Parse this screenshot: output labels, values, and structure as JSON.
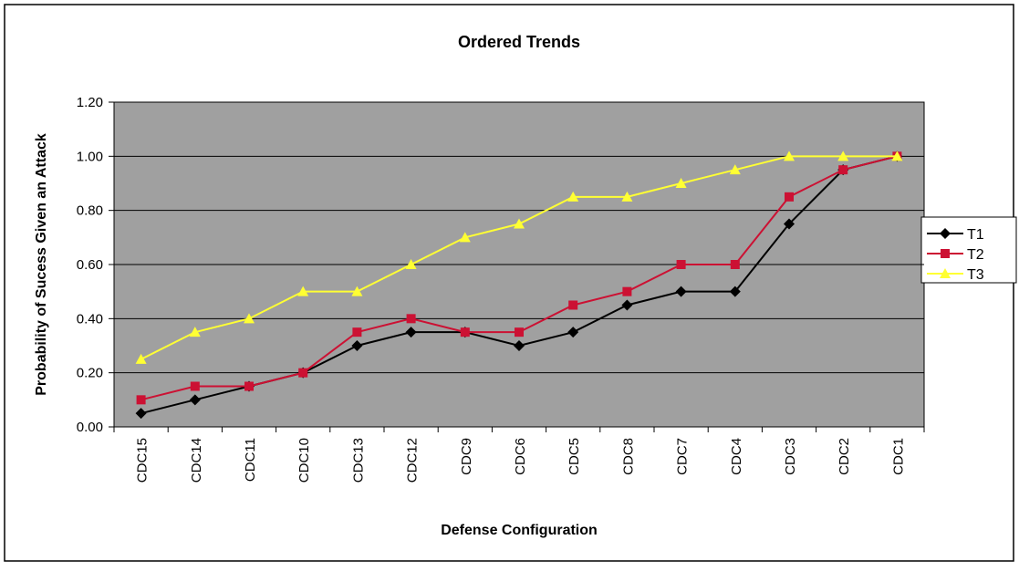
{
  "chart_data": {
    "type": "line",
    "title": "Ordered Trends",
    "x_label": "Defense Configuration",
    "y_label": "Probability of Sucess Given an Attack",
    "categories": [
      "CDC15",
      "CDC14",
      "CDC11",
      "CDC10",
      "CDC13",
      "CDC12",
      "CDC9",
      "CDC6",
      "CDC5",
      "CDC8",
      "CDC7",
      "CDC4",
      "CDC3",
      "CDC2",
      "CDC1"
    ],
    "series": [
      {
        "name": "T1",
        "color": "#000000",
        "marker": "diamond",
        "values": [
          0.05,
          0.1,
          0.15,
          0.2,
          0.3,
          0.35,
          0.35,
          0.3,
          0.35,
          0.45,
          0.5,
          0.5,
          0.75,
          0.95,
          1.0
        ]
      },
      {
        "name": "T2",
        "color": "#cc1133",
        "marker": "square",
        "values": [
          0.1,
          0.15,
          0.15,
          0.2,
          0.35,
          0.4,
          0.35,
          0.35,
          0.45,
          0.5,
          0.6,
          0.6,
          0.85,
          0.95,
          1.0
        ]
      },
      {
        "name": "T3",
        "color": "#ffff33",
        "marker": "triangle",
        "values": [
          0.25,
          0.35,
          0.4,
          0.5,
          0.5,
          0.6,
          0.7,
          0.75,
          0.85,
          0.85,
          0.9,
          0.95,
          1.0,
          1.0,
          1.0
        ]
      }
    ],
    "ylim": [
      0,
      1.2
    ],
    "yticks": [
      {
        "value": 0,
        "label": "0.00"
      },
      {
        "value": 0.2,
        "label": "0.20"
      },
      {
        "value": 0.4,
        "label": "0.40"
      },
      {
        "value": 0.6,
        "label": "0.60"
      },
      {
        "value": 0.8,
        "label": "0.80"
      },
      {
        "value": 1,
        "label": "1.00"
      },
      {
        "value": 1.2,
        "label": "1.20"
      }
    ],
    "grid": true,
    "legend": "right"
  }
}
